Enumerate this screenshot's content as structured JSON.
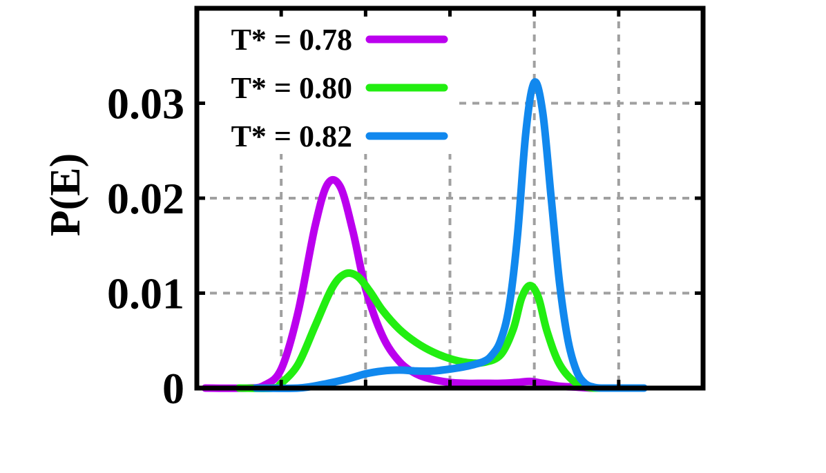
{
  "chart_data": {
    "type": "line",
    "title": "",
    "xlabel": "",
    "ylabel": "P(E)",
    "xlim": [
      0,
      6
    ],
    "ylim": [
      0,
      0.04
    ],
    "xticks": [
      1,
      2,
      3,
      4,
      5
    ],
    "xtick_labels": [
      "",
      "",
      "",
      "",
      ""
    ],
    "yticks": [
      0,
      0.01,
      0.02,
      0.03
    ],
    "ytick_labels": [
      "0",
      "0.01",
      "0.02",
      "0.03"
    ],
    "grid": true,
    "legend_position": "top-left",
    "series": [
      {
        "name": "T* = 0.78",
        "color": "#bb00ee",
        "x": [
          0.1,
          0.6,
          0.8,
          1.0,
          1.2,
          1.4,
          1.55,
          1.7,
          1.85,
          2.0,
          2.2,
          2.4,
          2.6,
          2.8,
          3.0,
          3.2,
          3.4,
          3.6,
          3.8,
          3.95,
          4.1,
          4.3,
          4.5,
          4.7,
          5.0
        ],
        "y": [
          0,
          0,
          0.0003,
          0.002,
          0.008,
          0.017,
          0.0215,
          0.0212,
          0.0165,
          0.0105,
          0.0055,
          0.0028,
          0.0015,
          0.0009,
          0.0006,
          0.0005,
          0.0005,
          0.0005,
          0.0006,
          0.0007,
          0.0005,
          0.0002,
          0.0001,
          0,
          0
        ]
      },
      {
        "name": "T* = 0.80",
        "color": "#22ee11",
        "x": [
          0.5,
          0.9,
          1.0,
          1.2,
          1.4,
          1.6,
          1.75,
          1.9,
          2.05,
          2.2,
          2.4,
          2.6,
          2.8,
          3.0,
          3.2,
          3.4,
          3.6,
          3.75,
          3.85,
          3.95,
          4.05,
          4.15,
          4.3,
          4.5,
          4.7,
          4.9
        ],
        "y": [
          0,
          0,
          0.0005,
          0.0025,
          0.0065,
          0.0105,
          0.012,
          0.0118,
          0.0102,
          0.0082,
          0.0062,
          0.0048,
          0.0038,
          0.0031,
          0.0027,
          0.0027,
          0.0035,
          0.0062,
          0.0095,
          0.0108,
          0.0095,
          0.006,
          0.0025,
          0.0005,
          0,
          0
        ]
      },
      {
        "name": "T* = 0.82",
        "color": "#1188ee",
        "x": [
          0.7,
          1.2,
          1.5,
          1.8,
          2.0,
          2.2,
          2.4,
          2.6,
          2.8,
          3.0,
          3.2,
          3.4,
          3.5,
          3.6,
          3.7,
          3.8,
          3.9,
          4.0,
          4.1,
          4.2,
          4.3,
          4.4,
          4.5,
          4.6,
          4.7,
          4.8,
          5.0,
          5.3
        ],
        "y": [
          0,
          0,
          0.0004,
          0.001,
          0.0015,
          0.0018,
          0.0019,
          0.0018,
          0.0018,
          0.002,
          0.0023,
          0.0028,
          0.0035,
          0.005,
          0.0085,
          0.016,
          0.027,
          0.0322,
          0.029,
          0.02,
          0.011,
          0.005,
          0.0018,
          0.0005,
          0.0001,
          0,
          0,
          0
        ]
      }
    ]
  }
}
